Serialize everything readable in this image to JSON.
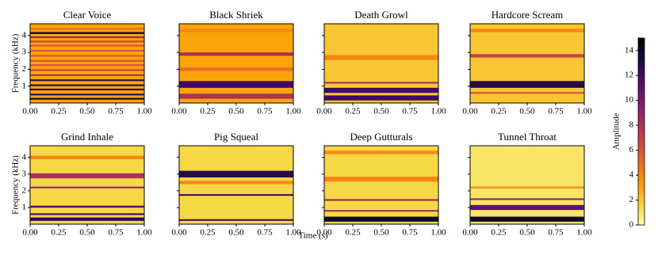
{
  "chart_data": {
    "type": "spectrogram",
    "xlabel": "Time (s)",
    "ylabel": "Frequency (kHz)",
    "xlim": [
      0,
      1
    ],
    "xticks": [
      {
        "value": 0,
        "label": "0.00"
      },
      {
        "value": 0.25,
        "label": "0.25"
      },
      {
        "value": 0.5,
        "label": "0.50"
      },
      {
        "value": 0.75,
        "label": "0.75"
      },
      {
        "value": 1,
        "label": "1.00"
      }
    ],
    "ylim": [
      0,
      4.7
    ],
    "yticks": [
      1,
      2,
      3,
      4
    ],
    "colorbar": {
      "label": "Amplitude",
      "lim": [
        0,
        15
      ],
      "ticks": [
        0,
        2,
        4,
        6,
        8,
        10,
        12,
        14
      ]
    },
    "panels": [
      {
        "title": "Clear Voice",
        "base": 3,
        "bands": [
          {
            "freq": 0.25,
            "width": 0.1,
            "amplitude": 14
          },
          {
            "freq": 0.5,
            "width": 0.1,
            "amplitude": 13
          },
          {
            "freq": 0.8,
            "width": 0.1,
            "amplitude": 13
          },
          {
            "freq": 1.05,
            "width": 0.1,
            "amplitude": 13
          },
          {
            "freq": 1.35,
            "width": 0.1,
            "amplitude": 13
          },
          {
            "freq": 1.65,
            "width": 0.1,
            "amplitude": 8
          },
          {
            "freq": 1.95,
            "width": 0.1,
            "amplitude": 7
          },
          {
            "freq": 2.25,
            "width": 0.1,
            "amplitude": 6
          },
          {
            "freq": 2.5,
            "width": 0.1,
            "amplitude": 6
          },
          {
            "freq": 2.8,
            "width": 0.1,
            "amplitude": 6
          },
          {
            "freq": 3.1,
            "width": 0.1,
            "amplitude": 6
          },
          {
            "freq": 3.4,
            "width": 0.1,
            "amplitude": 6
          },
          {
            "freq": 3.65,
            "width": 0.1,
            "amplitude": 7
          },
          {
            "freq": 3.9,
            "width": 0.1,
            "amplitude": 9
          },
          {
            "freq": 4.15,
            "width": 0.12,
            "amplitude": 13
          },
          {
            "freq": 4.4,
            "width": 0.1,
            "amplitude": 5
          }
        ]
      },
      {
        "title": "Black Shriek",
        "base": 3,
        "bands": [
          {
            "freq": 1.1,
            "width": 0.4,
            "amplitude": 12
          },
          {
            "freq": 0.4,
            "width": 0.3,
            "amplitude": 8
          },
          {
            "freq": 2.9,
            "width": 0.2,
            "amplitude": 8
          },
          {
            "freq": 2.0,
            "width": 0.2,
            "amplitude": 5
          },
          {
            "freq": 4.3,
            "width": 0.2,
            "amplitude": 4
          }
        ]
      },
      {
        "title": "Death Growl",
        "base": 2,
        "bands": [
          {
            "freq": 0.3,
            "width": 0.3,
            "amplitude": 12
          },
          {
            "freq": 0.75,
            "width": 0.3,
            "amplitude": 12
          },
          {
            "freq": 1.2,
            "width": 0.1,
            "amplitude": 8
          },
          {
            "freq": 2.7,
            "width": 0.3,
            "amplitude": 4
          }
        ]
      },
      {
        "title": "Hardcore Scream",
        "base": 2,
        "bands": [
          {
            "freq": 1.1,
            "width": 0.4,
            "amplitude": 13
          },
          {
            "freq": 0.6,
            "width": 0.1,
            "amplitude": 6
          },
          {
            "freq": 2.8,
            "width": 0.2,
            "amplitude": 7
          },
          {
            "freq": 4.3,
            "width": 0.2,
            "amplitude": 4
          }
        ]
      },
      {
        "title": "Grind Inhale",
        "base": 1.5,
        "bands": [
          {
            "freq": 0.3,
            "width": 0.2,
            "amplitude": 13
          },
          {
            "freq": 0.6,
            "width": 0.1,
            "amplitude": 12
          },
          {
            "freq": 1.05,
            "width": 0.12,
            "amplitude": 11
          },
          {
            "freq": 2.2,
            "width": 0.1,
            "amplitude": 9
          },
          {
            "freq": 2.9,
            "width": 0.3,
            "amplitude": 8
          },
          {
            "freq": 4.0,
            "width": 0.2,
            "amplitude": 4
          }
        ]
      },
      {
        "title": "Pig Squeal",
        "base": 1.5,
        "bands": [
          {
            "freq": 3.0,
            "width": 0.4,
            "amplitude": 13
          },
          {
            "freq": 1.75,
            "width": 0.1,
            "amplitude": 12
          },
          {
            "freq": 0.25,
            "width": 0.1,
            "amplitude": 12
          },
          {
            "freq": 2.5,
            "width": 0.2,
            "amplitude": 4
          }
        ]
      },
      {
        "title": "Deep Gutturals",
        "base": 1.5,
        "bands": [
          {
            "freq": 0.3,
            "width": 0.3,
            "amplitude": 14
          },
          {
            "freq": 0.8,
            "width": 0.1,
            "amplitude": 8
          },
          {
            "freq": 1.45,
            "width": 0.1,
            "amplitude": 9
          },
          {
            "freq": 2.7,
            "width": 0.3,
            "amplitude": 4
          },
          {
            "freq": 4.3,
            "width": 0.2,
            "amplitude": 4
          }
        ]
      },
      {
        "title": "Tunnel Throat",
        "base": 1,
        "bands": [
          {
            "freq": 0.3,
            "width": 0.3,
            "amplitude": 14
          },
          {
            "freq": 1.0,
            "width": 0.3,
            "amplitude": 11
          },
          {
            "freq": 1.5,
            "width": 0.1,
            "amplitude": 9
          },
          {
            "freq": 2.2,
            "width": 0.1,
            "amplitude": 4
          }
        ]
      }
    ]
  }
}
